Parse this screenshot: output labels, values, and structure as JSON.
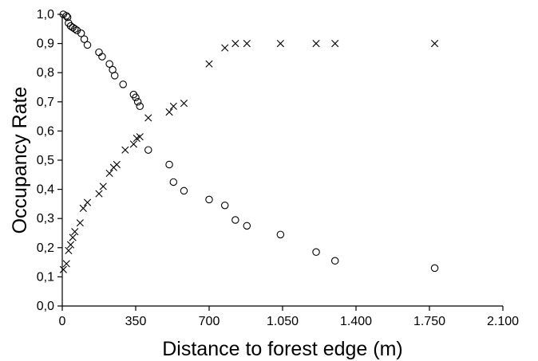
{
  "chart_data": {
    "type": "scatter",
    "title": "",
    "xlabel": "Distance to forest edge (m)",
    "ylabel": "Occupancy Rate",
    "xlim": [
      0,
      2100
    ],
    "ylim": [
      0,
      1.0
    ],
    "x_ticks": [
      0,
      350,
      700,
      1050,
      1400,
      1750,
      2100
    ],
    "x_tick_labels": [
      "0",
      "350",
      "700",
      "1.050",
      "1.400",
      "1.750",
      "2.100"
    ],
    "y_ticks": [
      0,
      0.1,
      0.2,
      0.3,
      0.4,
      0.5,
      0.6,
      0.7,
      0.8,
      0.9,
      1.0
    ],
    "y_tick_labels": [
      "0,0",
      "0,1",
      "0,2",
      "0,3",
      "0,4",
      "0,5",
      "0,6",
      "0,7",
      "0,8",
      "0,9",
      "1,0"
    ],
    "grid": false,
    "legend": "none",
    "series": [
      {
        "marker": "circle",
        "x": [
          5,
          20,
          25,
          30,
          40,
          50,
          60,
          70,
          90,
          105,
          120,
          175,
          190,
          225,
          240,
          250,
          290,
          340,
          350,
          360,
          370,
          410,
          510,
          530,
          580,
          700,
          775,
          825,
          880,
          1040,
          1210,
          1300,
          1775
        ],
        "y": [
          1.0,
          0.995,
          0.99,
          0.97,
          0.96,
          0.955,
          0.95,
          0.945,
          0.935,
          0.915,
          0.895,
          0.87,
          0.855,
          0.83,
          0.81,
          0.79,
          0.76,
          0.725,
          0.715,
          0.7,
          0.685,
          0.535,
          0.485,
          0.425,
          0.395,
          0.365,
          0.345,
          0.295,
          0.275,
          0.245,
          0.185,
          0.155,
          0.13
        ]
      },
      {
        "marker": "cross",
        "x": [
          5,
          20,
          30,
          40,
          50,
          60,
          85,
          100,
          120,
          175,
          195,
          225,
          245,
          260,
          300,
          340,
          355,
          370,
          410,
          510,
          530,
          580,
          700,
          775,
          825,
          880,
          1040,
          1210,
          1300,
          1775
        ],
        "y": [
          0.125,
          0.145,
          0.19,
          0.21,
          0.235,
          0.255,
          0.285,
          0.335,
          0.355,
          0.385,
          0.41,
          0.455,
          0.475,
          0.485,
          0.535,
          0.555,
          0.575,
          0.58,
          0.645,
          0.665,
          0.685,
          0.695,
          0.83,
          0.885,
          0.9,
          0.9,
          0.9,
          0.9,
          0.9,
          0.9
        ]
      }
    ]
  }
}
